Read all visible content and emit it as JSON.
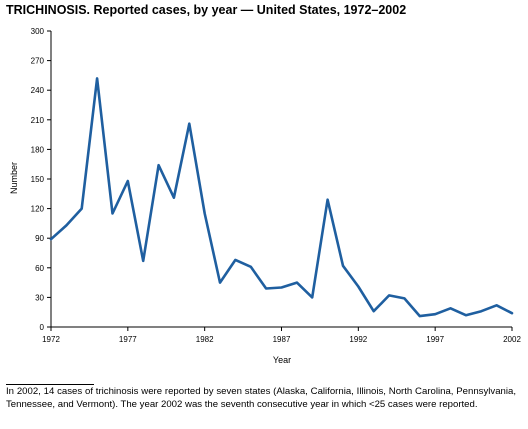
{
  "chart_data": {
    "type": "line",
    "title": "TRICHINOSIS. Reported cases, by year — United States, 1972–2002",
    "xlabel": "Year",
    "ylabel": "Number",
    "xlim": [
      1972,
      2002
    ],
    "ylim": [
      0,
      300
    ],
    "x_ticks": [
      1972,
      1977,
      1982,
      1987,
      1992,
      1997,
      2002
    ],
    "y_ticks": [
      0,
      30,
      60,
      90,
      120,
      150,
      180,
      210,
      240,
      270,
      300
    ],
    "line_color": "#1f5fa0",
    "grid": false,
    "series": [
      {
        "x": [
          1972,
          1973,
          1974,
          1975,
          1976,
          1977,
          1978,
          1979,
          1980,
          1981,
          1982,
          1983,
          1984,
          1985,
          1986,
          1987,
          1988,
          1989,
          1990,
          1991,
          1992,
          1993,
          1994,
          1995,
          1996,
          1997,
          1998,
          1999,
          2000,
          2001,
          2002
        ],
        "values": [
          89,
          103,
          120,
          252,
          115,
          148,
          67,
          164,
          131,
          206,
          115,
          45,
          68,
          61,
          39,
          40,
          45,
          30,
          129,
          62,
          41,
          16,
          32,
          29,
          11,
          13,
          19,
          12,
          16,
          22,
          14
        ]
      }
    ]
  },
  "footnote": "In 2002, 14 cases of trichinosis were reported by seven states (Alaska, California, Illinois, North Carolina, Pennsylvania, Tennessee, and Vermont). The year 2002 was the seventh consecutive year in which <25 cases were reported."
}
